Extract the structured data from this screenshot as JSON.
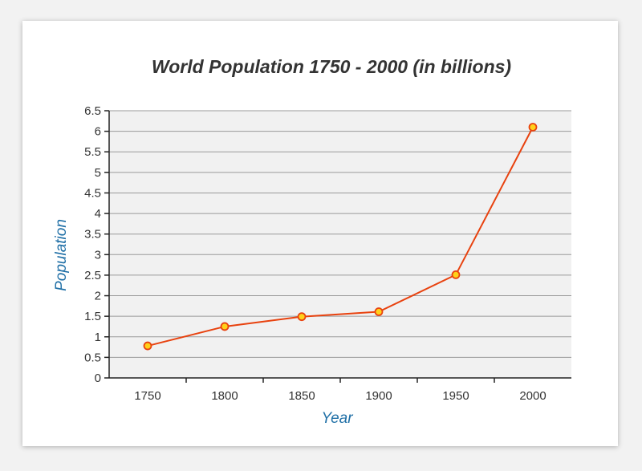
{
  "chart_data": {
    "type": "line",
    "title": "World Population 1750 - 2000 (in billions)",
    "xlabel": "Year",
    "ylabel": "Population",
    "x": [
      1750,
      1800,
      1850,
      1900,
      1950,
      2000
    ],
    "series": [
      {
        "values": [
          0.78,
          1.25,
          1.49,
          1.61,
          2.51,
          6.1
        ]
      }
    ],
    "ylim": [
      0,
      6.5
    ],
    "yticks": [
      "0",
      "0.5",
      "1",
      "1.5",
      "2",
      "2.5",
      "3",
      "3.5",
      "4",
      "4.5",
      "5",
      "5.5",
      "6",
      "6.5"
    ],
    "xticks": [
      "1750",
      "1800",
      "1850",
      "1900",
      "1950",
      "2000"
    ],
    "grid": true,
    "colors": {
      "line": "#e8420f",
      "marker_fill": "#ffd11a",
      "marker_stroke": "#e8420f",
      "plot_background": "#f1f1f1",
      "gridline": "#9a9a9a",
      "axis_title": "#1f6fa6"
    }
  }
}
